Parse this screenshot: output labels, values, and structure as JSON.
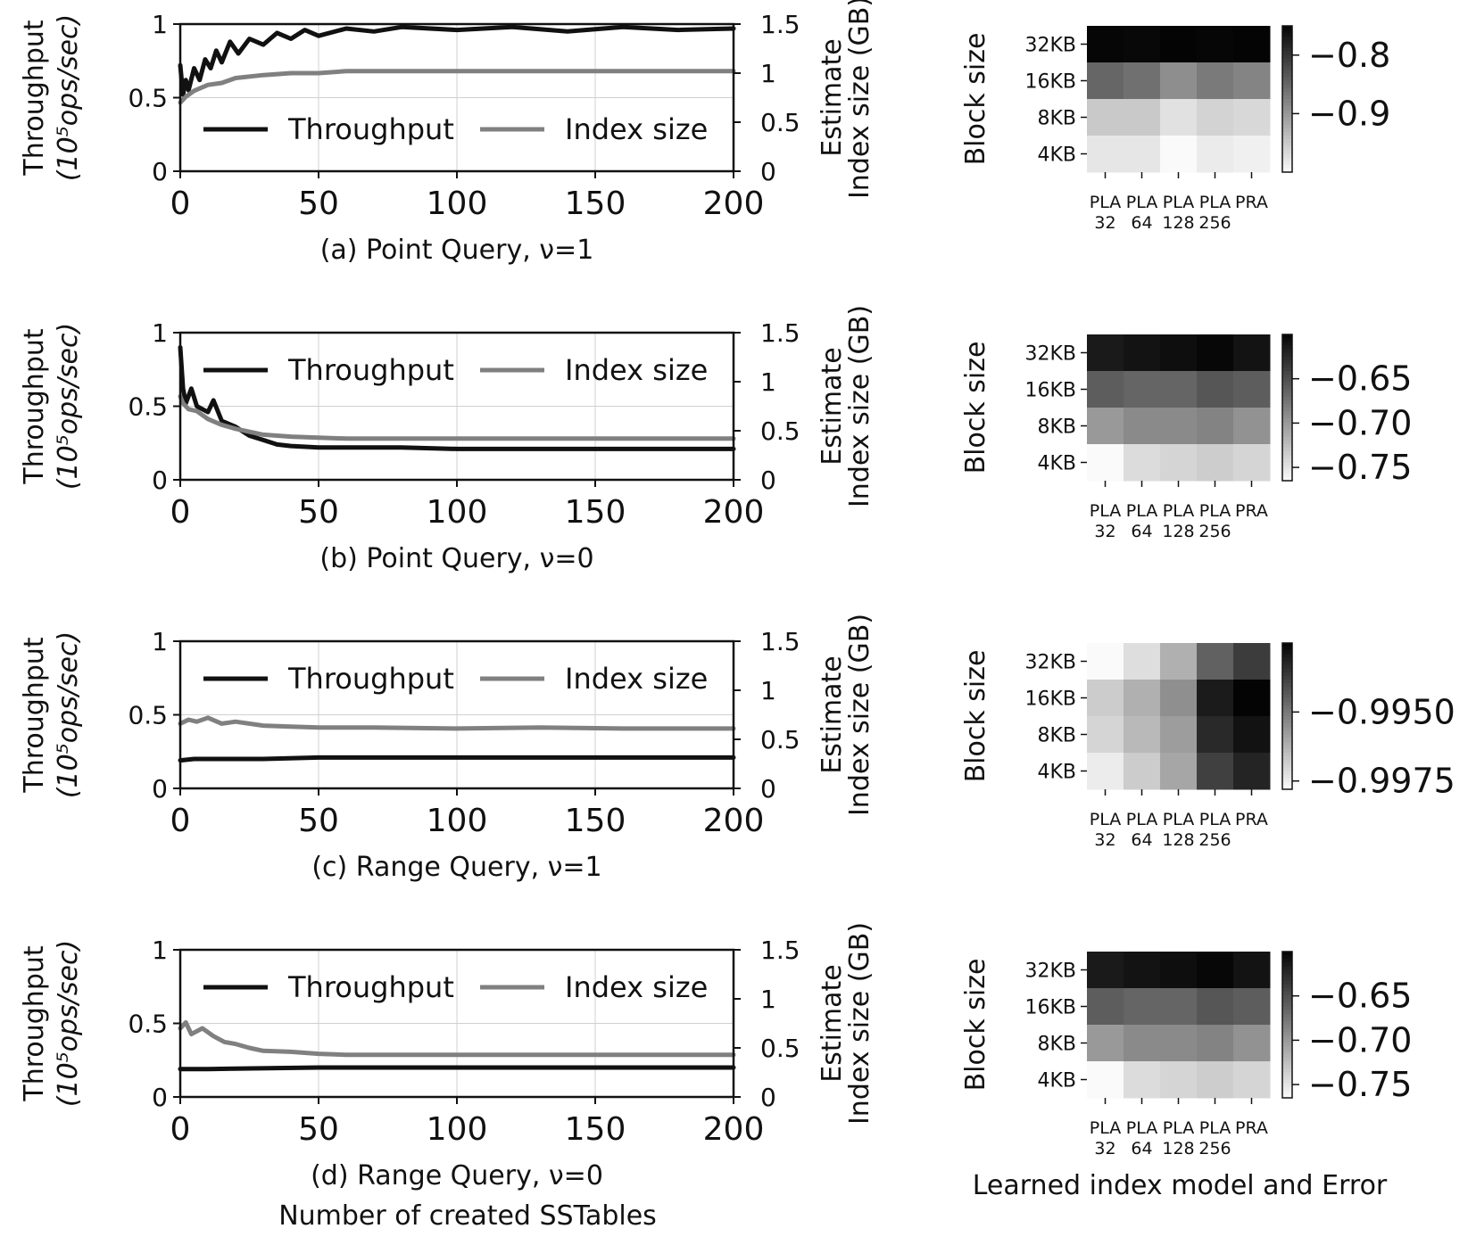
{
  "figure": {
    "xlabel_common": "Number of created SSTables",
    "heatmap_xlabel_common": "Learned index model and Error"
  },
  "chart_data": [
    {
      "type": "line",
      "caption": "(a) Point Query, ν=1",
      "ylabel_line1": "Throughput",
      "ylabel_line2": "(10⁵ops/sec)",
      "y2label_line1": "Estimate",
      "y2label_line2": "Index size (GB)",
      "xlim": [
        0,
        200
      ],
      "ylim": [
        0,
        1
      ],
      "y2lim": [
        0,
        1.5
      ],
      "xticks": [
        "0",
        "50",
        "100",
        "150",
        "200"
      ],
      "yticks": [
        "0",
        "0.5",
        "1"
      ],
      "y2ticks": [
        "0",
        "0.5",
        "1",
        "1.5"
      ],
      "grid": true,
      "legend_position": "center",
      "series": [
        {
          "name": "Throughput",
          "axis": "left",
          "color": "#111111",
          "x": [
            0,
            1,
            2,
            3,
            5,
            7,
            9,
            11,
            13,
            15,
            18,
            21,
            25,
            30,
            35,
            40,
            45,
            50,
            60,
            70,
            80,
            100,
            120,
            140,
            160,
            180,
            200
          ],
          "y": [
            0.72,
            0.52,
            0.62,
            0.55,
            0.7,
            0.62,
            0.76,
            0.7,
            0.82,
            0.74,
            0.88,
            0.8,
            0.9,
            0.86,
            0.94,
            0.9,
            0.96,
            0.92,
            0.97,
            0.95,
            0.98,
            0.96,
            0.98,
            0.95,
            0.98,
            0.96,
            0.97
          ]
        },
        {
          "name": "Index size",
          "axis": "right",
          "color": "#808080",
          "x": [
            0,
            2,
            5,
            10,
            15,
            20,
            30,
            40,
            50,
            60,
            80,
            100,
            120,
            140,
            160,
            180,
            200
          ],
          "y": [
            0.7,
            0.76,
            0.82,
            0.88,
            0.9,
            0.95,
            0.98,
            1.0,
            1.0,
            1.02,
            1.02,
            1.02,
            1.02,
            1.02,
            1.02,
            1.02,
            1.02
          ]
        }
      ]
    },
    {
      "type": "line",
      "caption": "(b) Point Query, ν=0",
      "ylabel_line1": "Throughput",
      "ylabel_line2": "(10⁵ops/sec)",
      "y2label_line1": "Estimate",
      "y2label_line2": "Index size (GB)",
      "xlim": [
        0,
        200
      ],
      "ylim": [
        0,
        1
      ],
      "y2lim": [
        0,
        1.5
      ],
      "xticks": [
        "0",
        "50",
        "100",
        "150",
        "200"
      ],
      "yticks": [
        "0",
        "0.5",
        "1"
      ],
      "y2ticks": [
        "0",
        "0.5",
        "1",
        "1.5"
      ],
      "grid": true,
      "legend_position": "top",
      "series": [
        {
          "name": "Throughput",
          "axis": "left",
          "color": "#111111",
          "x": [
            0,
            1,
            2,
            4,
            6,
            8,
            10,
            12,
            15,
            20,
            25,
            30,
            35,
            40,
            50,
            60,
            80,
            100,
            120,
            140,
            160,
            180,
            200
          ],
          "y": [
            0.9,
            0.62,
            0.52,
            0.62,
            0.5,
            0.48,
            0.46,
            0.54,
            0.4,
            0.36,
            0.3,
            0.27,
            0.24,
            0.23,
            0.22,
            0.22,
            0.22,
            0.21,
            0.21,
            0.21,
            0.21,
            0.21,
            0.21
          ]
        },
        {
          "name": "Index size",
          "axis": "right",
          "color": "#808080",
          "x": [
            0,
            1,
            3,
            6,
            10,
            15,
            20,
            30,
            40,
            50,
            60,
            80,
            100,
            120,
            140,
            160,
            180,
            200
          ],
          "y": [
            0.85,
            0.78,
            0.72,
            0.7,
            0.62,
            0.56,
            0.52,
            0.46,
            0.44,
            0.43,
            0.42,
            0.42,
            0.42,
            0.42,
            0.42,
            0.42,
            0.42,
            0.42
          ]
        }
      ]
    },
    {
      "type": "line",
      "caption": "(c) Range Query, ν=1",
      "ylabel_line1": "Throughput",
      "ylabel_line2": "(10⁵ops/sec)",
      "y2label_line1": "Estimate",
      "y2label_line2": "Index size (GB)",
      "xlim": [
        0,
        200
      ],
      "ylim": [
        0,
        1
      ],
      "y2lim": [
        0,
        1.5
      ],
      "xticks": [
        "0",
        "50",
        "100",
        "150",
        "200"
      ],
      "yticks": [
        "0",
        "0.5",
        "1"
      ],
      "y2ticks": [
        "0",
        "0.5",
        "1",
        "1.5"
      ],
      "grid": true,
      "legend_position": "top",
      "series": [
        {
          "name": "Throughput",
          "axis": "left",
          "color": "#111111",
          "x": [
            0,
            5,
            10,
            20,
            30,
            50,
            100,
            150,
            200
          ],
          "y": [
            0.19,
            0.2,
            0.2,
            0.2,
            0.2,
            0.21,
            0.21,
            0.21,
            0.21
          ]
        },
        {
          "name": "Index size",
          "axis": "right",
          "color": "#808080",
          "x": [
            0,
            3,
            6,
            10,
            15,
            20,
            30,
            40,
            50,
            70,
            100,
            130,
            160,
            200
          ],
          "y": [
            0.66,
            0.7,
            0.68,
            0.72,
            0.66,
            0.68,
            0.64,
            0.63,
            0.62,
            0.62,
            0.61,
            0.62,
            0.61,
            0.61
          ]
        }
      ]
    },
    {
      "type": "line",
      "caption": "(d) Range Query, ν=0",
      "ylabel_line1": "Throughput",
      "ylabel_line2": "(10⁵ops/sec)",
      "y2label_line1": "Estimate",
      "y2label_line2": "Index size (GB)",
      "xlim": [
        0,
        200
      ],
      "ylim": [
        0,
        1
      ],
      "y2lim": [
        0,
        1.5
      ],
      "xticks": [
        "0",
        "50",
        "100",
        "150",
        "200"
      ],
      "yticks": [
        "0",
        "0.5",
        "1"
      ],
      "y2ticks": [
        "0",
        "0.5",
        "1",
        "1.5"
      ],
      "grid": true,
      "legend_position": "top",
      "series": [
        {
          "name": "Throughput",
          "axis": "left",
          "color": "#111111",
          "x": [
            0,
            5,
            10,
            50,
            100,
            150,
            200
          ],
          "y": [
            0.19,
            0.19,
            0.19,
            0.2,
            0.2,
            0.2,
            0.2
          ]
        },
        {
          "name": "Index size",
          "axis": "right",
          "color": "#808080",
          "x": [
            0,
            2,
            4,
            8,
            12,
            16,
            20,
            25,
            30,
            40,
            50,
            60,
            80,
            100,
            120,
            150,
            180,
            200
          ],
          "y": [
            0.7,
            0.76,
            0.64,
            0.7,
            0.62,
            0.56,
            0.54,
            0.5,
            0.47,
            0.46,
            0.44,
            0.43,
            0.43,
            0.43,
            0.43,
            0.43,
            0.43,
            0.43
          ]
        }
      ]
    },
    {
      "type": "heatmap",
      "ylabel": "Block size",
      "rows": [
        "32KB",
        "16KB",
        "8KB",
        "4KB"
      ],
      "cols_line1": [
        "PLA",
        "PLA",
        "PLA",
        "PLA",
        "PRA"
      ],
      "cols_line2": [
        "32",
        "64",
        "128",
        "256",
        ""
      ],
      "values": [
        [
          -0.752,
          -0.754,
          -0.745,
          -0.752,
          -0.75
        ],
        [
          -0.85,
          -0.86,
          -0.89,
          -0.87,
          -0.88
        ],
        [
          -0.95,
          -0.95,
          -0.975,
          -0.96,
          -0.965
        ],
        [
          -0.98,
          -0.98,
          -1.0,
          -0.985,
          -0.99
        ]
      ],
      "vmin": -1.0,
      "vmax": -0.75,
      "colorbar_ticks": [
        -0.8,
        -0.9
      ],
      "colorbar_ticklabels": [
        "−0.8",
        "−0.9"
      ]
    },
    {
      "type": "heatmap",
      "ylabel": "Block size",
      "rows": [
        "32KB",
        "16KB",
        "8KB",
        "4KB"
      ],
      "cols_line1": [
        "PLA",
        "PLA",
        "PLA",
        "PLA",
        "PRA"
      ],
      "cols_line2": [
        "32",
        "64",
        "128",
        "256",
        ""
      ],
      "values": [
        [
          -0.615,
          -0.61,
          -0.607,
          -0.602,
          -0.61
        ],
        [
          -0.66,
          -0.665,
          -0.665,
          -0.655,
          -0.66
        ],
        [
          -0.7,
          -0.69,
          -0.69,
          -0.685,
          -0.695
        ],
        [
          -0.765,
          -0.745,
          -0.74,
          -0.735,
          -0.74
        ]
      ],
      "vmin": -0.765,
      "vmax": -0.6,
      "colorbar_ticks": [
        -0.65,
        -0.7,
        -0.75
      ],
      "colorbar_ticklabels": [
        "−0.65",
        "−0.70",
        "−0.75"
      ]
    },
    {
      "type": "heatmap",
      "ylabel": "Block size",
      "rows": [
        "32KB",
        "16KB",
        "8KB",
        "4KB"
      ],
      "cols_line1": [
        "PLA",
        "PLA",
        "PLA",
        "PLA",
        "PRA"
      ],
      "cols_line2": [
        "32",
        "64",
        "128",
        "256",
        ""
      ],
      "values": [
        [
          -0.9978,
          -0.9972,
          -0.9962,
          -0.9945,
          -0.9937
        ],
        [
          -0.9968,
          -0.9962,
          -0.9955,
          -0.993,
          -0.9925
        ],
        [
          -0.997,
          -0.9964,
          -0.9958,
          -0.9933,
          -0.9928
        ],
        [
          -0.9975,
          -0.9968,
          -0.996,
          -0.9938,
          -0.9932
        ]
      ],
      "vmin": -0.9978,
      "vmax": -0.9925,
      "colorbar_ticks": [
        -0.995,
        -0.9975
      ],
      "colorbar_ticklabels": [
        "−0.9950",
        "−0.9975"
      ]
    },
    {
      "type": "heatmap",
      "ylabel": "Block size",
      "rows": [
        "32KB",
        "16KB",
        "8KB",
        "4KB"
      ],
      "cols_line1": [
        "PLA",
        "PLA",
        "PLA",
        "PLA",
        "PRA"
      ],
      "cols_line2": [
        "32",
        "64",
        "128",
        "256",
        ""
      ],
      "values": [
        [
          -0.615,
          -0.61,
          -0.607,
          -0.602,
          -0.61
        ],
        [
          -0.66,
          -0.665,
          -0.665,
          -0.655,
          -0.66
        ],
        [
          -0.7,
          -0.69,
          -0.69,
          -0.685,
          -0.695
        ],
        [
          -0.765,
          -0.745,
          -0.74,
          -0.735,
          -0.74
        ]
      ],
      "vmin": -0.765,
      "vmax": -0.6,
      "colorbar_ticks": [
        -0.65,
        -0.7,
        -0.75
      ],
      "colorbar_ticklabels": [
        "−0.65",
        "−0.70",
        "−0.75"
      ]
    }
  ]
}
